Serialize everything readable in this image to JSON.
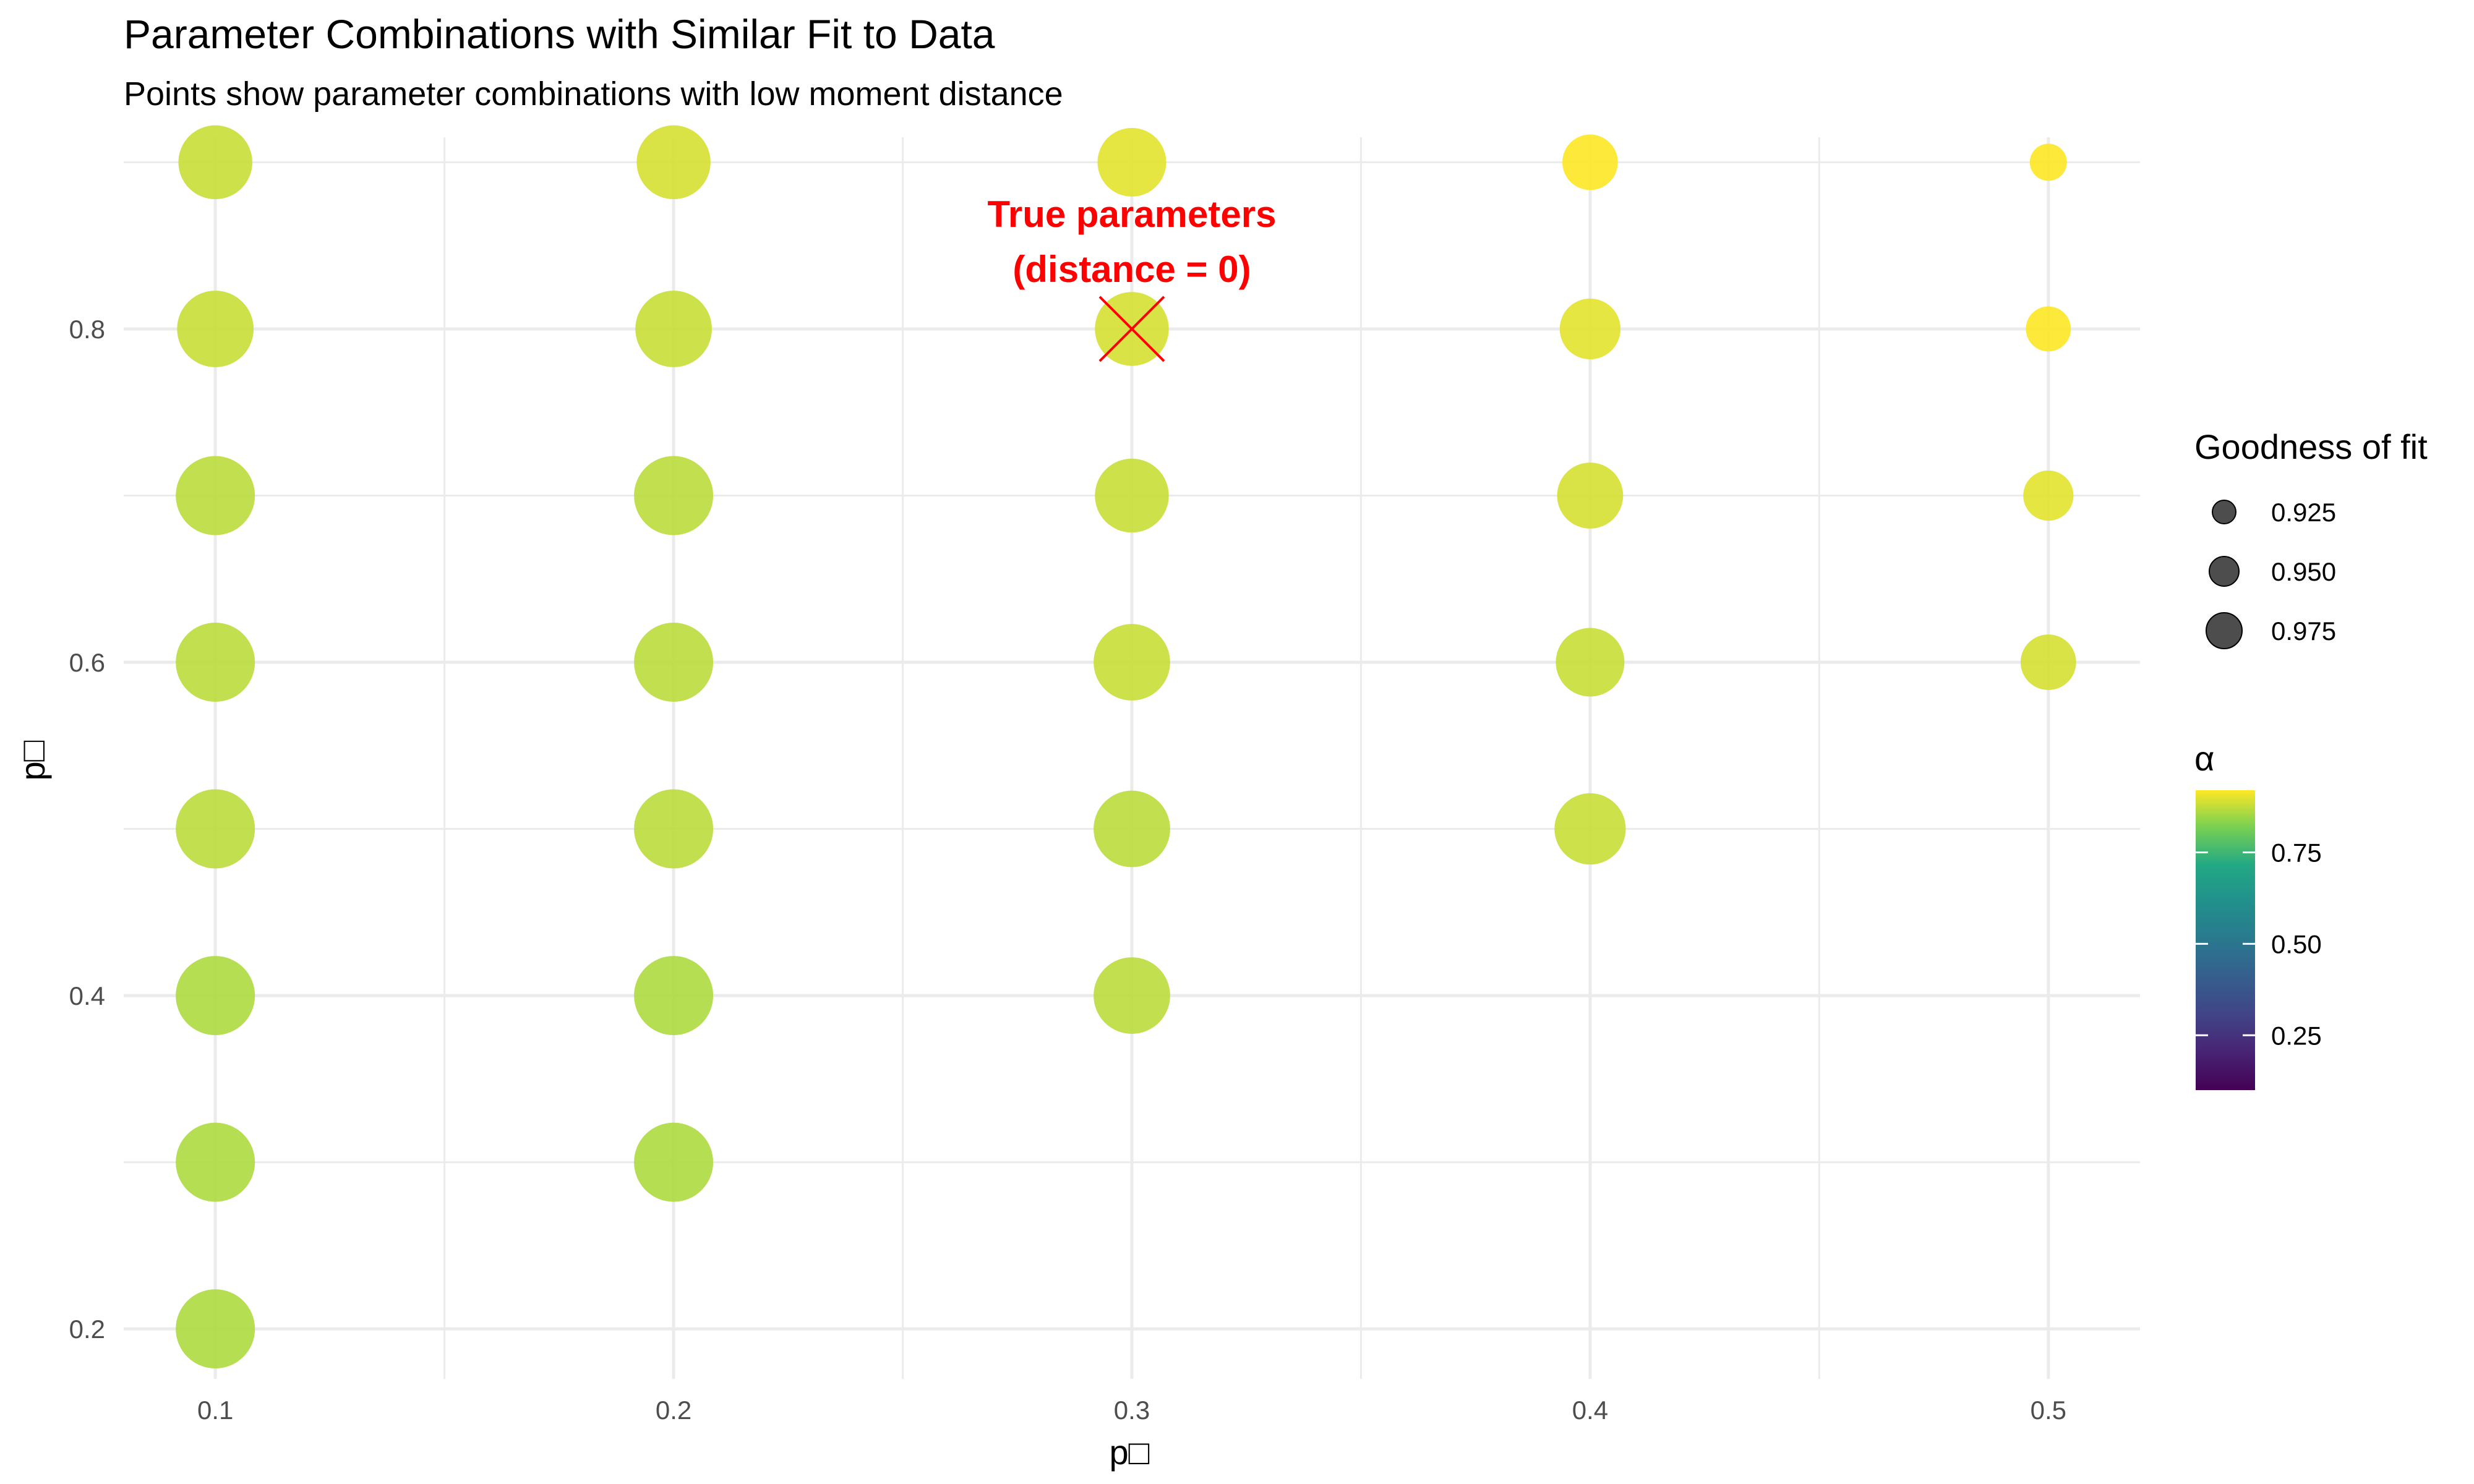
{
  "chart_data": {
    "type": "scatter",
    "title": "Parameter Combinations with Similar Fit to Data",
    "subtitle": "Points show parameter combinations with low moment distance",
    "xlabel": "p□",
    "ylabel": "p□",
    "xlim": [
      0.08,
      0.52
    ],
    "ylim": [
      0.17,
      0.915
    ],
    "x_ticks": [
      "0.1",
      "0.2",
      "0.3",
      "0.4",
      "0.5"
    ],
    "y_ticks": [
      "0.2",
      "0.4",
      "0.6",
      "0.8"
    ],
    "grid": true,
    "points": [
      {
        "x": 0.1,
        "y": 0.2,
        "fit": 0.99,
        "alpha": 0.86
      },
      {
        "x": 0.1,
        "y": 0.3,
        "fit": 0.99,
        "alpha": 0.86
      },
      {
        "x": 0.1,
        "y": 0.4,
        "fit": 0.99,
        "alpha": 0.86
      },
      {
        "x": 0.1,
        "y": 0.5,
        "fit": 0.99,
        "alpha": 0.87
      },
      {
        "x": 0.1,
        "y": 0.6,
        "fit": 0.99,
        "alpha": 0.87
      },
      {
        "x": 0.1,
        "y": 0.7,
        "fit": 0.99,
        "alpha": 0.87
      },
      {
        "x": 0.1,
        "y": 0.8,
        "fit": 0.985,
        "alpha": 0.88
      },
      {
        "x": 0.1,
        "y": 0.9,
        "fit": 0.98,
        "alpha": 0.88
      },
      {
        "x": 0.2,
        "y": 0.3,
        "fit": 0.99,
        "alpha": 0.86
      },
      {
        "x": 0.2,
        "y": 0.4,
        "fit": 0.99,
        "alpha": 0.86
      },
      {
        "x": 0.2,
        "y": 0.5,
        "fit": 0.99,
        "alpha": 0.87
      },
      {
        "x": 0.2,
        "y": 0.6,
        "fit": 0.99,
        "alpha": 0.87
      },
      {
        "x": 0.2,
        "y": 0.7,
        "fit": 0.99,
        "alpha": 0.87
      },
      {
        "x": 0.2,
        "y": 0.8,
        "fit": 0.985,
        "alpha": 0.88
      },
      {
        "x": 0.2,
        "y": 0.9,
        "fit": 0.98,
        "alpha": 0.89
      },
      {
        "x": 0.3,
        "y": 0.4,
        "fit": 0.985,
        "alpha": 0.87
      },
      {
        "x": 0.3,
        "y": 0.5,
        "fit": 0.985,
        "alpha": 0.87
      },
      {
        "x": 0.3,
        "y": 0.6,
        "fit": 0.985,
        "alpha": 0.88
      },
      {
        "x": 0.3,
        "y": 0.7,
        "fit": 0.98,
        "alpha": 0.88
      },
      {
        "x": 0.3,
        "y": 0.8,
        "fit": 0.98,
        "alpha": 0.89
      },
      {
        "x": 0.3,
        "y": 0.9,
        "fit": 0.97,
        "alpha": 0.9
      },
      {
        "x": 0.4,
        "y": 0.5,
        "fit": 0.975,
        "alpha": 0.88
      },
      {
        "x": 0.4,
        "y": 0.6,
        "fit": 0.97,
        "alpha": 0.88
      },
      {
        "x": 0.4,
        "y": 0.7,
        "fit": 0.965,
        "alpha": 0.89
      },
      {
        "x": 0.4,
        "y": 0.8,
        "fit": 0.955,
        "alpha": 0.9
      },
      {
        "x": 0.4,
        "y": 0.9,
        "fit": 0.945,
        "alpha": 0.92
      },
      {
        "x": 0.5,
        "y": 0.6,
        "fit": 0.945,
        "alpha": 0.89
      },
      {
        "x": 0.5,
        "y": 0.7,
        "fit": 0.935,
        "alpha": 0.9
      },
      {
        "x": 0.5,
        "y": 0.8,
        "fit": 0.925,
        "alpha": 0.92
      },
      {
        "x": 0.5,
        "y": 0.9,
        "fit": 0.91,
        "alpha": 0.94
      }
    ],
    "true_point": {
      "x": 0.3,
      "y": 0.8
    },
    "annotation": [
      "True parameters",
      "(distance = 0)"
    ],
    "legend_size": {
      "title": "Goodness of fit",
      "entries": [
        {
          "label": "0.925",
          "value": 0.925
        },
        {
          "label": "0.950",
          "value": 0.95
        },
        {
          "label": "0.975",
          "value": 0.975
        }
      ]
    },
    "legend_color": {
      "title": "α",
      "scale": "viridis",
      "range": [
        0.1,
        0.92
      ],
      "ticks": [
        {
          "label": "0.25",
          "value": 0.25
        },
        {
          "label": "0.50",
          "value": 0.5
        },
        {
          "label": "0.75",
          "value": 0.75
        }
      ]
    },
    "legend_placement": "right",
    "colors": {
      "annotation": "#ff0000",
      "grid": "#ebebeb",
      "legend_point": "#4d4d4d"
    }
  }
}
